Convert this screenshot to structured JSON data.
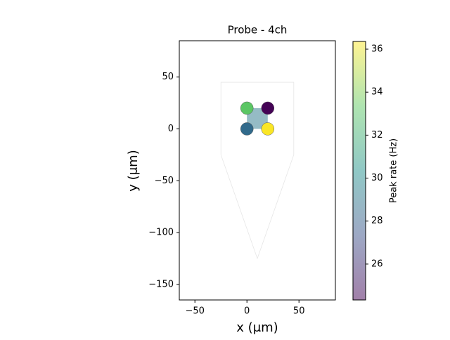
{
  "chart_data": {
    "type": "scatter",
    "title": "Probe - 4ch",
    "x_label": "x (μm)",
    "y_label": "y (μm)",
    "xlim": [
      -65,
      85
    ],
    "ylim": [
      -165,
      85
    ],
    "xticks": [
      {
        "value": -50,
        "label": "−50"
      },
      0,
      50
    ],
    "yticks": [
      {
        "value": -150,
        "label": "−150"
      },
      {
        "value": -100,
        "label": "−100"
      },
      {
        "value": -50,
        "label": "−50"
      },
      0,
      50
    ],
    "probe_contour": {
      "x": [
        -25,
        45,
        45,
        10,
        -25
      ],
      "y": [
        45,
        45,
        -25,
        -125,
        -25
      ]
    },
    "x": [
      0,
      20,
      0,
      20
    ],
    "y": [
      20,
      20,
      0,
      0
    ],
    "values": [
      33.2,
      24.4,
      28.5,
      36.3
    ],
    "colormap": "viridis",
    "colorbar": {
      "label": "Peak rate (Hz)",
      "clim": [
        24.33,
        36.36
      ],
      "ticks": [
        26,
        28,
        30,
        32,
        34,
        36
      ]
    }
  }
}
